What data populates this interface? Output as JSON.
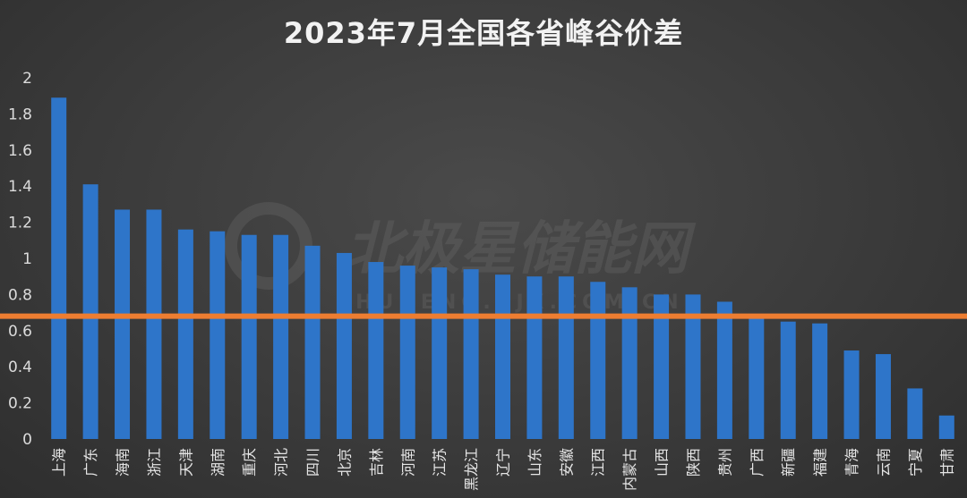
{
  "chart_data": {
    "type": "bar",
    "title": "2023年7月全国各省峰谷价差",
    "xlabel": "",
    "ylabel": "",
    "ylim": [
      0,
      2
    ],
    "yticks": [
      "0",
      "0.2",
      "0.4",
      "0.6",
      "0.8",
      "1",
      "1.2",
      "1.4",
      "1.6",
      "1.8",
      "2"
    ],
    "grid": false,
    "categories": [
      "上海",
      "广东",
      "海南",
      "浙江",
      "天津",
      "湖南",
      "重庆",
      "河北",
      "四川",
      "北京",
      "吉林",
      "河南",
      "江苏",
      "黑龙江",
      "辽宁",
      "山东",
      "安徽",
      "江西",
      "内蒙古",
      "山西",
      "陕西",
      "贵州",
      "广西",
      "新疆",
      "福建",
      "青海",
      "云南",
      "宁夏",
      "甘肃"
    ],
    "values": [
      1.89,
      1.41,
      1.27,
      1.27,
      1.16,
      1.15,
      1.13,
      1.13,
      1.07,
      1.03,
      0.98,
      0.96,
      0.95,
      0.94,
      0.91,
      0.9,
      0.9,
      0.87,
      0.84,
      0.8,
      0.8,
      0.76,
      0.67,
      0.65,
      0.64,
      0.49,
      0.47,
      0.28,
      0.13
    ],
    "reference_line": {
      "value": 0.68,
      "color": "#ed7d31"
    },
    "bar_color": "#2e75c9"
  },
  "watermark": {
    "main": "北极星储能网",
    "sub": "CHUNENG.BJX.COM.CN"
  }
}
